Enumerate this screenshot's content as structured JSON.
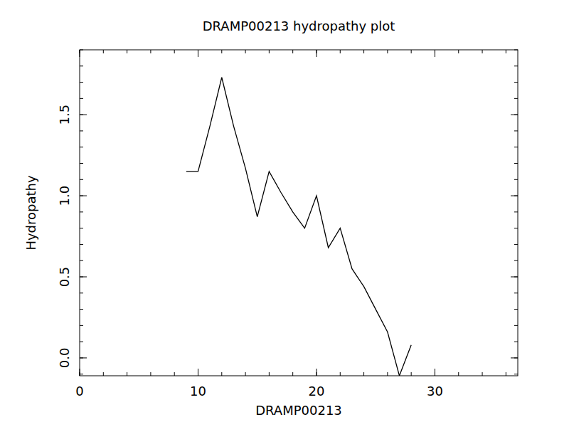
{
  "chart_data": {
    "type": "line",
    "title": "DRAMP00213 hydropathy plot",
    "x_label": "DRAMP00213",
    "y_label": "Hydropathy",
    "x": [
      9,
      10,
      11,
      12,
      13,
      14,
      15,
      16,
      17,
      18,
      19,
      20,
      21,
      22,
      23,
      24,
      25,
      26,
      27,
      28
    ],
    "values": [
      1.15,
      1.15,
      1.43,
      1.73,
      1.43,
      1.17,
      0.87,
      1.15,
      1.02,
      0.9,
      0.8,
      1.0,
      0.68,
      0.8,
      0.55,
      0.44,
      0.3,
      0.16,
      -0.11,
      0.08
    ],
    "color": "#000000",
    "xlim": [
      0,
      37
    ],
    "xticks": [
      0,
      10,
      20,
      30
    ],
    "ylim": [
      -0.11,
      1.9
    ],
    "yticks": [
      {
        "value": 0,
        "label": "0.0"
      },
      0.5,
      {
        "value": 1,
        "label": "1.0"
      },
      1.5
    ],
    "grid": false
  }
}
